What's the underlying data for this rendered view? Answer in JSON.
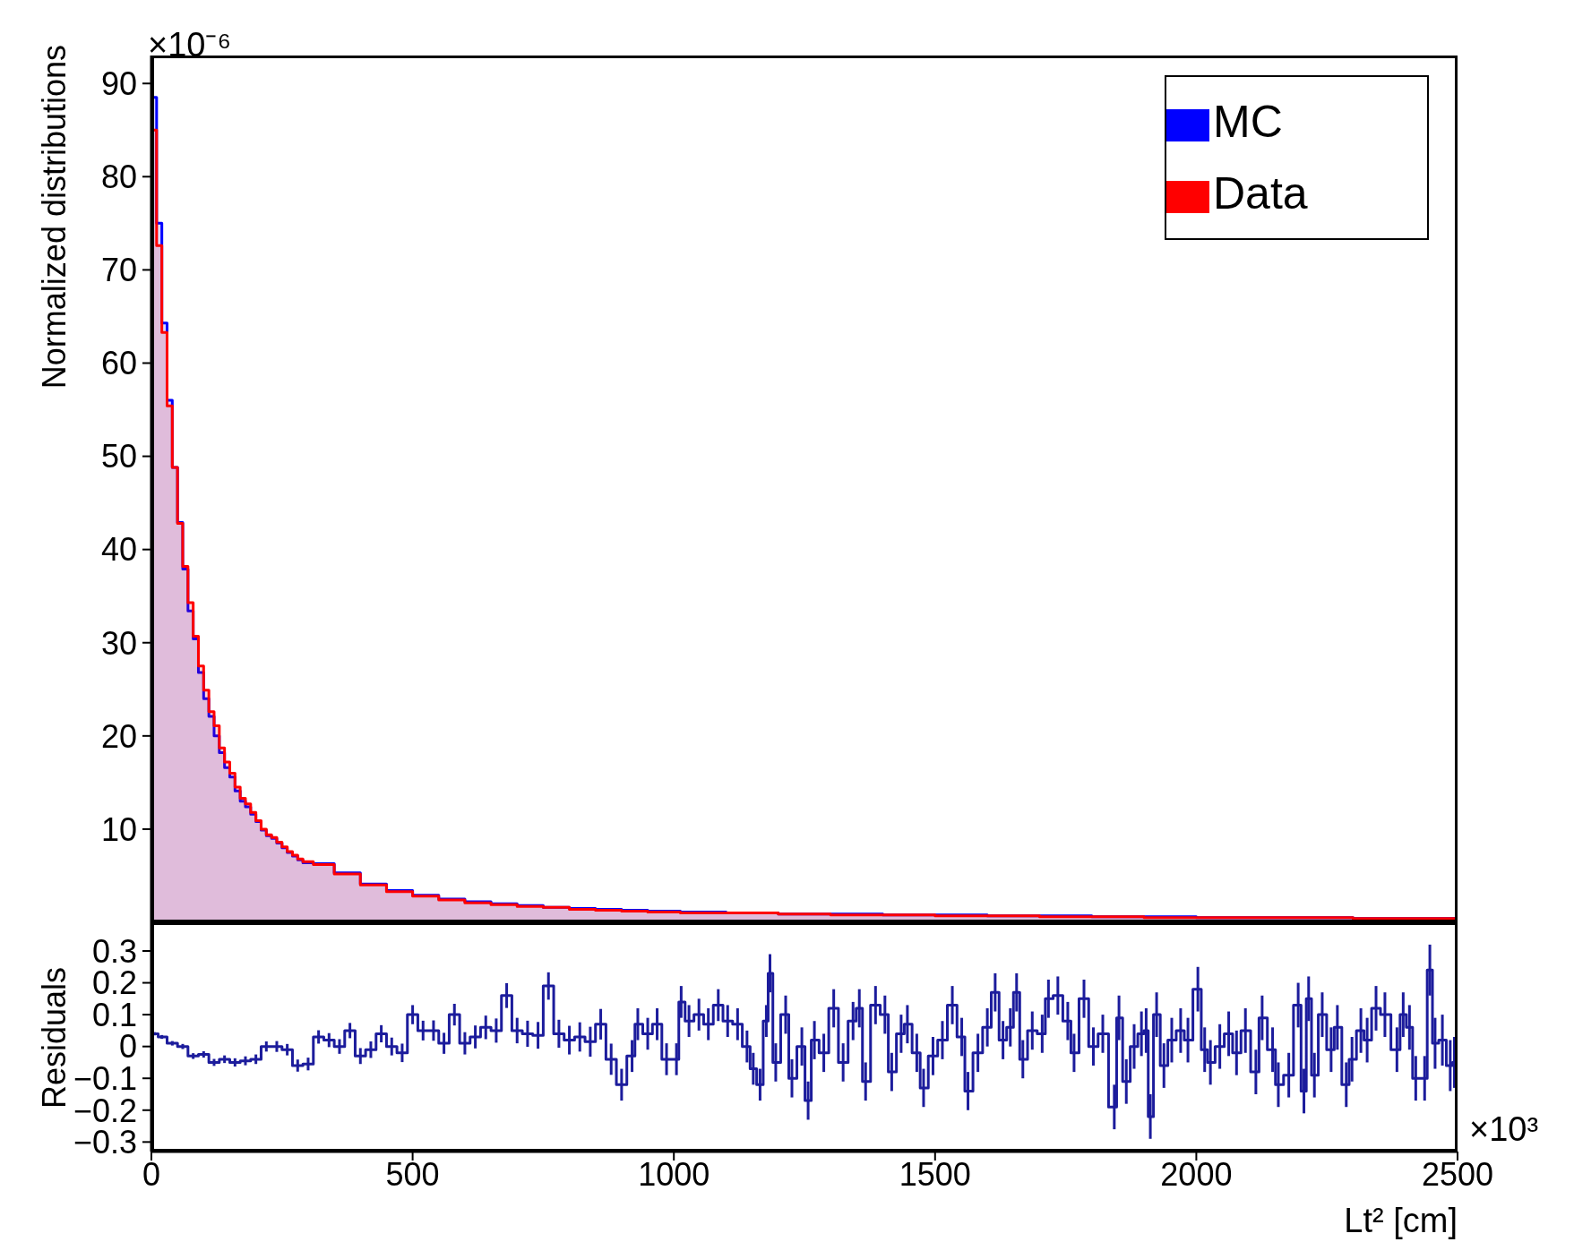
{
  "chart_data": [
    {
      "type": "area",
      "ylabel": "Normalized distributions",
      "annotations": [
        "×10⁻⁶"
      ],
      "xlim": [
        0,
        2500
      ],
      "xticks": [
        0,
        500,
        1000,
        1500,
        2000,
        2500
      ],
      "ylim": [
        0,
        93
      ],
      "yticks": [
        10,
        20,
        30,
        40,
        50,
        60,
        70,
        80,
        90
      ],
      "tick_labels": "y",
      "legend": "top right",
      "x": [
        5,
        15,
        25,
        35,
        45,
        55,
        65,
        75,
        85,
        95,
        105,
        115,
        125,
        135,
        145,
        155,
        165,
        175,
        185,
        195,
        205,
        215,
        225,
        235,
        245,
        255,
        265,
        275,
        285,
        295,
        325,
        375,
        425,
        475,
        525,
        575,
        625,
        675,
        725,
        775,
        825,
        875,
        925,
        975,
        1050,
        1150,
        1250,
        1350,
        1450,
        1550,
        1650,
        1750,
        1850,
        1950,
        2050,
        2150,
        2250,
        2350,
        2450,
        2495
      ],
      "series": [
        {
          "name": "MC",
          "color": "#0000ff",
          "values": [
            88.5,
            75,
            64.3,
            56,
            48.8,
            42.9,
            37.9,
            33.4,
            30.4,
            26.8,
            24,
            22.1,
            20,
            18.2,
            16.6,
            15.6,
            14.1,
            13,
            12.4,
            11.6,
            10.8,
            9.9,
            9.3,
            9,
            8.5,
            8,
            7.5,
            7.1,
            6.7,
            6.4,
            6.3,
            5.3,
            4.1,
            3.4,
            2.9,
            2.5,
            2.2,
            2.0,
            1.8,
            1.6,
            1.5,
            1.4,
            1.3,
            1.2,
            1.1,
            1.0,
            0.9,
            0.9,
            0.8,
            0.8,
            0.7,
            0.7,
            0.6,
            0.6,
            0.5,
            0.5,
            0.5,
            0.4,
            0.4,
            0.4
          ]
        },
        {
          "name": "Data",
          "color": "#ff0000",
          "values": [
            85,
            72.6,
            63.3,
            55.4,
            48.8,
            42.8,
            38.2,
            34.3,
            30.7,
            27.5,
            24.9,
            22.6,
            21.1,
            18.7,
            17.2,
            16,
            14.5,
            13.3,
            12.7,
            11.8,
            10.9,
            10,
            9.4,
            9.1,
            8.6,
            8.1,
            7.6,
            7.2,
            6.8,
            6.5,
            6.2,
            5.2,
            4.0,
            3.3,
            2.8,
            2.4,
            2.1,
            1.9,
            1.7,
            1.6,
            1.4,
            1.3,
            1.2,
            1.1,
            1.0,
            1.0,
            0.9,
            0.8,
            0.8,
            0.7,
            0.7,
            0.6,
            0.6,
            0.5,
            0.5,
            0.5,
            0.5,
            0.4,
            0.4,
            0.4
          ]
        }
      ]
    },
    {
      "type": "step",
      "xlabel": "Lt² [cm]",
      "ylabel": "Residuals",
      "annotations": [
        "×10³"
      ],
      "xlim": [
        0,
        2500
      ],
      "xticks": [
        0,
        500,
        1000,
        1500,
        2000,
        2500
      ],
      "ylim": [
        -0.33,
        0.39
      ],
      "yticks": [
        {
          "value": -0.3,
          "label": "−0.3"
        },
        {
          "value": -0.2,
          "label": "−0.2"
        },
        {
          "value": -0.1,
          "label": "−0.1"
        },
        0,
        0.1,
        0.2,
        0.3
      ],
      "x": [
        6,
        20,
        40,
        60,
        80,
        100,
        120,
        140,
        160,
        180,
        200,
        220,
        240,
        260,
        280,
        300,
        320,
        340,
        360,
        380,
        400,
        420,
        440,
        460,
        480,
        500,
        520,
        540,
        560,
        580,
        600,
        620,
        640,
        660,
        680,
        700,
        720,
        740,
        760,
        780,
        800,
        820,
        840,
        860,
        880,
        900,
        920,
        931,
        950,
        968,
        986,
        1005,
        1014,
        1029,
        1048,
        1066,
        1085,
        1103,
        1122,
        1140,
        1152,
        1165,
        1177,
        1184,
        1195,
        1214,
        1226,
        1245,
        1257,
        1269,
        1287,
        1306,
        1324,
        1343,
        1355,
        1367,
        1386,
        1404,
        1417,
        1435,
        1447,
        1465,
        1478,
        1496,
        1514,
        1533,
        1551,
        1563,
        1582,
        1600,
        1615,
        1630,
        1644,
        1656,
        1668,
        1686,
        1705,
        1717,
        1735,
        1754,
        1766,
        1785,
        1803,
        1821,
        1843,
        1852,
        1866,
        1881,
        1895,
        1904,
        1912,
        1924,
        1938,
        1953,
        1970,
        1984,
        2003,
        2016,
        2027,
        2045,
        2062,
        2077,
        2094,
        2114,
        2126,
        2146,
        2157,
        2177,
        2195,
        2206,
        2215,
        2226,
        2241,
        2258,
        2270,
        2287,
        2298,
        2315,
        2327,
        2344,
        2361,
        2384,
        2396,
        2408,
        2420,
        2437,
        2447,
        2457,
        2471,
        2486,
        2494
      ],
      "series": [
        {
          "color": "#1c1c9c",
          "values": [
            0.04,
            0.03,
            0.01,
            0,
            -0.03,
            -0.025,
            -0.05,
            -0.04,
            -0.05,
            -0.045,
            -0.04,
            0,
            0,
            -0.01,
            -0.06,
            -0.055,
            0.03,
            0.02,
            0,
            0.05,
            -0.03,
            -0.01,
            0.04,
            0,
            -0.02,
            0.1,
            0.05,
            0.05,
            0.01,
            0.1,
            0.01,
            0.03,
            0.06,
            0.05,
            0.16,
            0.05,
            0.04,
            0.035,
            0.19,
            0.04,
            0.02,
            0.03,
            0.015,
            0.07,
            -0.04,
            -0.12,
            -0.03,
            0.07,
            0.04,
            0.07,
            -0.04,
            -0.04,
            0.14,
            0.08,
            0.1,
            0.07,
            0.13,
            0.08,
            0.07,
            0,
            -0.07,
            -0.12,
            0.08,
            0.23,
            -0.05,
            0.1,
            -0.1,
            0,
            -0.17,
            0.02,
            -0.02,
            0.12,
            -0.05,
            0.08,
            0.12,
            -0.11,
            0.13,
            0.1,
            -0.08,
            0.04,
            0.07,
            -0.02,
            -0.13,
            -0.03,
            0.02,
            0.13,
            0.03,
            -0.14,
            -0.02,
            0.06,
            0.17,
            0.02,
            0.06,
            0.17,
            -0.04,
            0.05,
            0.04,
            0.15,
            0.16,
            0.08,
            -0.02,
            0.15,
            0,
            0.04,
            -0.19,
            0.09,
            -0.11,
            0,
            0.04,
            0.05,
            -0.22,
            0.1,
            -0.06,
            0.02,
            0.05,
            0.02,
            0.18,
            -0.01,
            -0.05,
            0,
            0.04,
            -0.02,
            0.05,
            -0.08,
            0.09,
            -0.01,
            -0.12,
            -0.09,
            0.13,
            -0.14,
            0.15,
            -0.09,
            0.1,
            -0.01,
            0.06,
            -0.12,
            -0.04,
            0.05,
            0.02,
            0.12,
            0.1,
            -0.01,
            0.1,
            0.06,
            -0.1,
            -0.1,
            0.24,
            0.01,
            0.02,
            -0.06,
            -0.05
          ],
          "errors": [
            0.005,
            0.006,
            0.007,
            0.008,
            0.009,
            0.01,
            0.011,
            0.012,
            0.013,
            0.014,
            0.015,
            0.016,
            0.017,
            0.018,
            0.019,
            0.02,
            0.021,
            0.022,
            0.023,
            0.024,
            0.025,
            0.026,
            0.027,
            0.028,
            0.029,
            0.03,
            0.031,
            0.032,
            0.033,
            0.034,
            0.035,
            0.036,
            0.037,
            0.038,
            0.039,
            0.04,
            0.041,
            0.042,
            0.043,
            0.044,
            0.045,
            0.046,
            0.047,
            0.048,
            0.049,
            0.05,
            0.05,
            0.05,
            0.05,
            0.05,
            0.05,
            0.05,
            0.05,
            0.05,
            0.05,
            0.05,
            0.05,
            0.05,
            0.05,
            0.05,
            0.05,
            0.05,
            0.05,
            0.06,
            0.06,
            0.06,
            0.06,
            0.06,
            0.06,
            0.06,
            0.06,
            0.06,
            0.06,
            0.06,
            0.06,
            0.06,
            0.06,
            0.06,
            0.06,
            0.06,
            0.06,
            0.06,
            0.06,
            0.06,
            0.06,
            0.06,
            0.06,
            0.06,
            0.06,
            0.06,
            0.06,
            0.06,
            0.06,
            0.06,
            0.06,
            0.06,
            0.06,
            0.06,
            0.06,
            0.06,
            0.06,
            0.06,
            0.06,
            0.06,
            0.07,
            0.07,
            0.07,
            0.07,
            0.07,
            0.07,
            0.07,
            0.07,
            0.07,
            0.07,
            0.07,
            0.07,
            0.07,
            0.07,
            0.07,
            0.07,
            0.07,
            0.07,
            0.07,
            0.07,
            0.07,
            0.07,
            0.07,
            0.07,
            0.07,
            0.07,
            0.07,
            0.07,
            0.07,
            0.07,
            0.07,
            0.07,
            0.07,
            0.07,
            0.07,
            0.07,
            0.07,
            0.07,
            0.07,
            0.07,
            0.07,
            0.07,
            0.08,
            0.08,
            0.08,
            0.08,
            0.08
          ]
        }
      ]
    }
  ]
}
